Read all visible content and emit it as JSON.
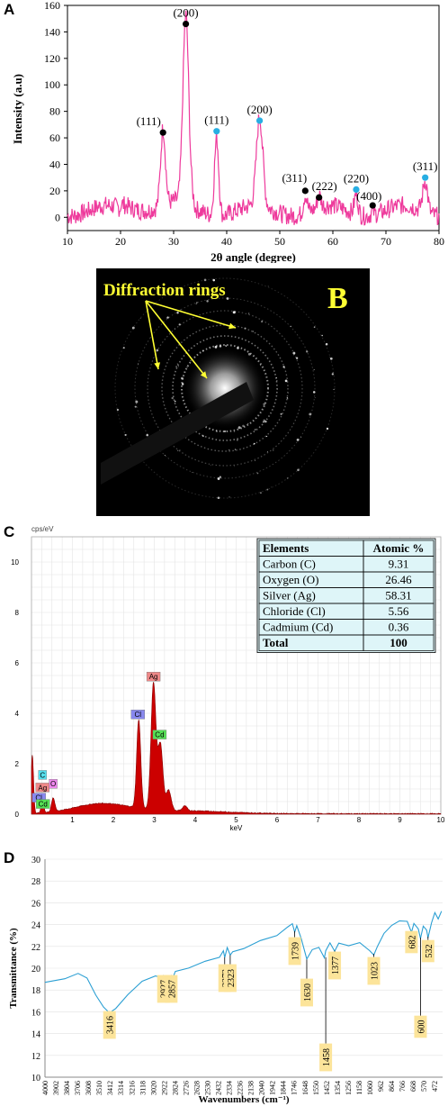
{
  "panels": {
    "A": {
      "letter": "A"
    },
    "B": {
      "letter": "B",
      "annotation": "Diffraction rings"
    },
    "C": {
      "letter": "C"
    },
    "D": {
      "letter": "D"
    }
  },
  "chart_data": [
    {
      "panel": "A",
      "type": "line",
      "xlabel": "2θ angle (degree)",
      "ylabel": "Intensity (a.u)",
      "xlim": [
        10,
        80
      ],
      "ylim": [
        -10,
        160
      ],
      "xticks": [
        10,
        20,
        30,
        40,
        50,
        60,
        70,
        80
      ],
      "yticks": [
        0,
        20,
        40,
        60,
        80,
        100,
        120,
        140,
        160
      ],
      "line_color": "#ee3a9c",
      "peaks": [
        {
          "x": 28.0,
          "y": 64,
          "label": "(111)",
          "marker": "black"
        },
        {
          "x": 32.3,
          "y": 146,
          "label": "(200)",
          "marker": "black"
        },
        {
          "x": 38.1,
          "y": 65,
          "label": "(111)",
          "marker": "blue"
        },
        {
          "x": 46.2,
          "y": 73,
          "label": "(200)",
          "marker": "blue"
        },
        {
          "x": 54.8,
          "y": 20,
          "label": "(311)",
          "marker": "black"
        },
        {
          "x": 57.4,
          "y": 15,
          "label": "(222)",
          "marker": "black"
        },
        {
          "x": 64.4,
          "y": 21,
          "label": "(220)",
          "marker": "blue"
        },
        {
          "x": 67.5,
          "y": 9,
          "label": "(400)",
          "marker": "black"
        },
        {
          "x": 77.4,
          "y": 30,
          "label": "(311)",
          "marker": "blue"
        }
      ],
      "marker_colors": {
        "black": "#000000",
        "blue": "#27aee3"
      }
    },
    {
      "panel": "C",
      "type": "area",
      "ylabel": "cps/eV",
      "xlabel": "keV",
      "xlim": [
        0,
        10
      ],
      "ylim": [
        0,
        11
      ],
      "xticks": [
        1,
        2,
        3,
        4,
        5,
        6,
        7,
        8,
        9,
        10
      ],
      "yticks": [
        0,
        2,
        4,
        6,
        8,
        10
      ],
      "fill_color": "#cc0000",
      "element_labels": [
        {
          "x": 0.27,
          "y": 1.45,
          "text": "C",
          "bg": "#55e0ee"
        },
        {
          "x": 0.18,
          "y": 0.55,
          "text": "Cl",
          "bg": "#8888ee"
        },
        {
          "x": 0.27,
          "y": 0.95,
          "text": "Ag",
          "bg": "#ee8888"
        },
        {
          "x": 0.28,
          "y": 0.3,
          "text": "Cd",
          "bg": "#55e055"
        },
        {
          "x": 0.53,
          "y": 1.1,
          "text": "O",
          "bg": "#ee88ee"
        },
        {
          "x": 2.6,
          "y": 3.85,
          "text": "Cl",
          "bg": "#8888ee"
        },
        {
          "x": 2.98,
          "y": 5.35,
          "text": "Ag",
          "bg": "#ee8888"
        },
        {
          "x": 3.13,
          "y": 3.05,
          "text": "Cd",
          "bg": "#55e055"
        }
      ],
      "table": {
        "columns": [
          "Elements",
          "Atomic %"
        ],
        "rows": [
          [
            "Carbon (C)",
            "9.31"
          ],
          [
            "Oxygen (O)",
            "26.46"
          ],
          [
            "Silver (Ag)",
            "58.31"
          ],
          [
            "Chloride (Cl)",
            "5.56"
          ],
          [
            "Cadmium (Cd)",
            "0.36"
          ],
          [
            "Total",
            "100"
          ]
        ]
      }
    },
    {
      "panel": "D",
      "type": "line",
      "xlabel": "Wavenumbers (cm⁻¹)",
      "ylabel": "Transmittance (%)",
      "x_reversed": true,
      "xlim": [
        4000,
        400
      ],
      "ylim": [
        10,
        30
      ],
      "yticks": [
        10,
        12,
        14,
        16,
        18,
        20,
        22,
        24,
        26,
        28,
        30
      ],
      "xticks": [
        4000,
        3902,
        3804,
        3706,
        3608,
        3510,
        3412,
        3314,
        3216,
        3118,
        3020,
        2922,
        2824,
        2726,
        2628,
        2530,
        2432,
        2334,
        2236,
        2138,
        2040,
        1942,
        1844,
        1746,
        1648,
        1550,
        1452,
        1354,
        1256,
        1158,
        1060,
        962,
        864,
        766,
        668,
        570,
        472
      ],
      "line_color": "#2b9fd3",
      "peak_labels": [
        "3416",
        "2927",
        "2857",
        "2373",
        "2323",
        "1739",
        "1630",
        "1458",
        "1377",
        "1023",
        "682",
        "600",
        "532"
      ],
      "label_bg": "#fce49a"
    }
  ]
}
